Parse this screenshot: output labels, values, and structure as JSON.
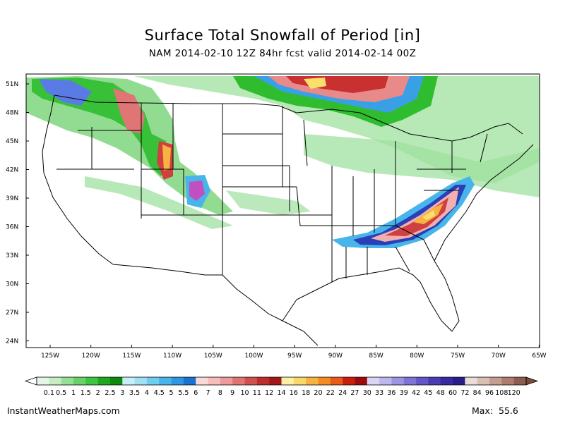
{
  "title": "Surface Total Snowfall of Period [in]",
  "subtitle": "NAM 2014-02-10 12Z 84hr fcst valid 2014-02-14 00Z",
  "footer": {
    "source": "InstantWeatherMaps.com",
    "max_label": "Max:",
    "max_value": "55.6"
  },
  "map": {
    "lat_labels": [
      "51N",
      "48N",
      "45N",
      "42N",
      "39N",
      "36N",
      "33N",
      "30N",
      "27N",
      "24N"
    ],
    "lon_labels": [
      "125W",
      "120W",
      "115W",
      "110W",
      "105W",
      "100W",
      "95W",
      "90W",
      "85W",
      "80W",
      "75W",
      "70W",
      "65W"
    ]
  },
  "colorbar": {
    "labels": [
      "0.1",
      "0.5",
      "1",
      "1.5",
      "2",
      "2.5",
      "3",
      "3.5",
      "4",
      "4.5",
      "5",
      "5.5",
      "6",
      "7",
      "8",
      "9",
      "10",
      "11",
      "12",
      "14",
      "16",
      "18",
      "20",
      "22",
      "24",
      "27",
      "30",
      "33",
      "36",
      "39",
      "42",
      "45",
      "48",
      "60",
      "72",
      "84",
      "96",
      "108",
      "120"
    ],
    "colors": [
      "#e6f5e6",
      "#c5ecc5",
      "#96df96",
      "#69d169",
      "#3fc43f",
      "#1fa81f",
      "#0e8a0e",
      "#c8eef8",
      "#9fe0f3",
      "#6fcdef",
      "#48b5ea",
      "#2f96e0",
      "#1c72d0",
      "#fcd9d9",
      "#f7bcbc",
      "#ed9a9a",
      "#e07575",
      "#d05050",
      "#bc2e2e",
      "#a01818",
      "#fcefa6",
      "#f9d86a",
      "#f7b340",
      "#f58a25",
      "#e85b18",
      "#c9200d",
      "#9c0c0c",
      "#d9d6f3",
      "#bcb7ec",
      "#9d95e1",
      "#7f74d6",
      "#6556c8",
      "#4c3cb4",
      "#3a29a0",
      "#2b1d87",
      "#ecdcd6",
      "#d9bfb4",
      "#c59e91",
      "#ad7d6e",
      "#8e5d4f"
    ]
  }
}
